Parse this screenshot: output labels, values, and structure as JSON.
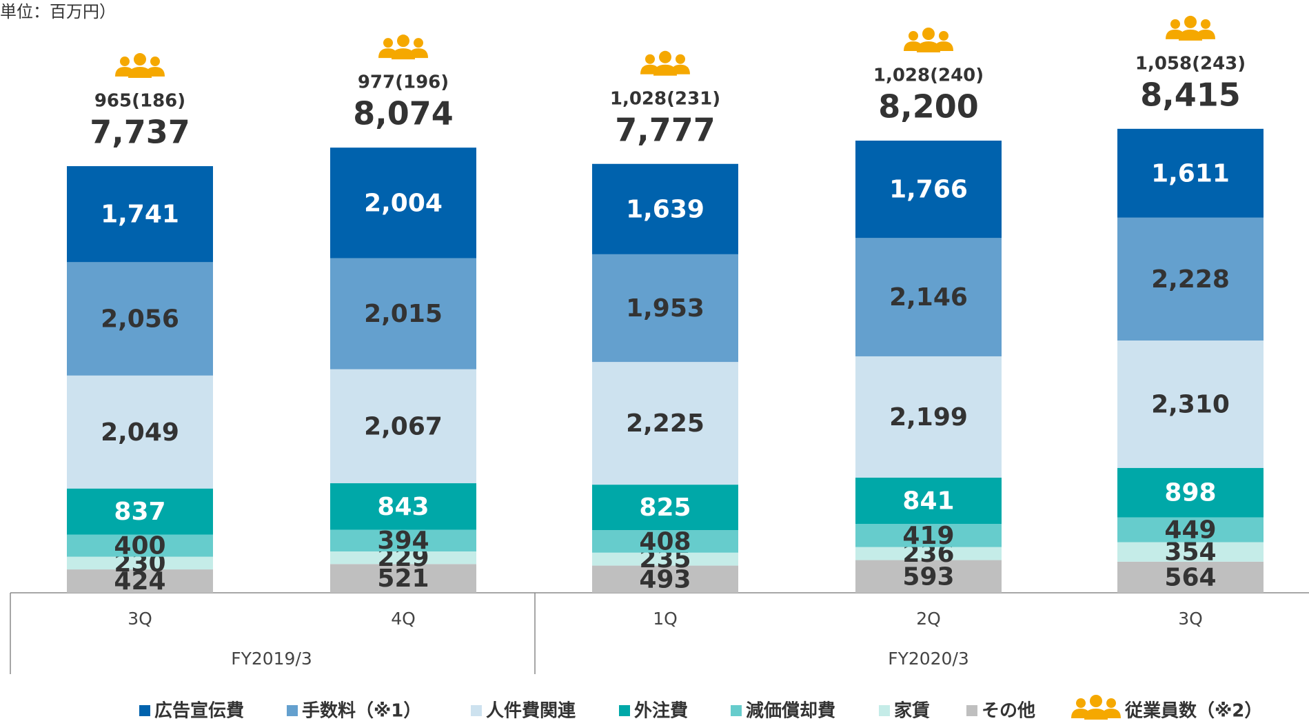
{
  "chart_data": {
    "type": "stacked_bar",
    "unit_note": "単位：百万円）",
    "categories": [
      "3Q",
      "4Q",
      "1Q",
      "2Q",
      "3Q"
    ],
    "groups": [
      "FY2019/3",
      "FY2020/3"
    ],
    "series": [
      {
        "name": "その他",
        "color": "#bfbfbf",
        "values": [
          424,
          521,
          493,
          593,
          564
        ]
      },
      {
        "name": "家賃",
        "color": "#c5ece8",
        "values": [
          230,
          229,
          235,
          236,
          354
        ]
      },
      {
        "name": "減価償却費",
        "color": "#66cccc",
        "values": [
          400,
          394,
          408,
          419,
          449
        ]
      },
      {
        "name": "外注費",
        "color": "#00a8a8",
        "values": [
          837,
          843,
          825,
          841,
          898
        ]
      },
      {
        "name": "人件費関連",
        "color": "#cde2ef",
        "values": [
          2049,
          2067,
          2225,
          2199,
          2310
        ],
        "value_labels": [
          "2,049",
          "2,067",
          "2,225",
          "2,199",
          "2,310"
        ]
      },
      {
        "name": "手数料（※1）",
        "color": "#64a0ce",
        "values": [
          2056,
          2015,
          1953,
          2146,
          2228
        ],
        "value_labels": [
          "2,056",
          "2,015",
          "1,953",
          "2,146",
          "2,228"
        ]
      },
      {
        "name": "広告宣伝費",
        "color": "#0062ad",
        "values": [
          1741,
          2004,
          1639,
          1766,
          1611
        ],
        "value_labels": [
          "1,741",
          "2,004",
          "1,639",
          "1,766",
          "1,611"
        ]
      }
    ],
    "totals": [
      7737,
      8074,
      7777,
      8200,
      8415
    ],
    "total_labels": [
      "7,737",
      "8,074",
      "7,777",
      "8,200",
      "8,415"
    ],
    "employees": {
      "name": "従業員数（※2）",
      "color": "#f5a800",
      "labels": [
        "965(186)",
        "977(196)",
        "1,028(231)",
        "1,028(240)",
        "1,058(243)"
      ]
    }
  }
}
